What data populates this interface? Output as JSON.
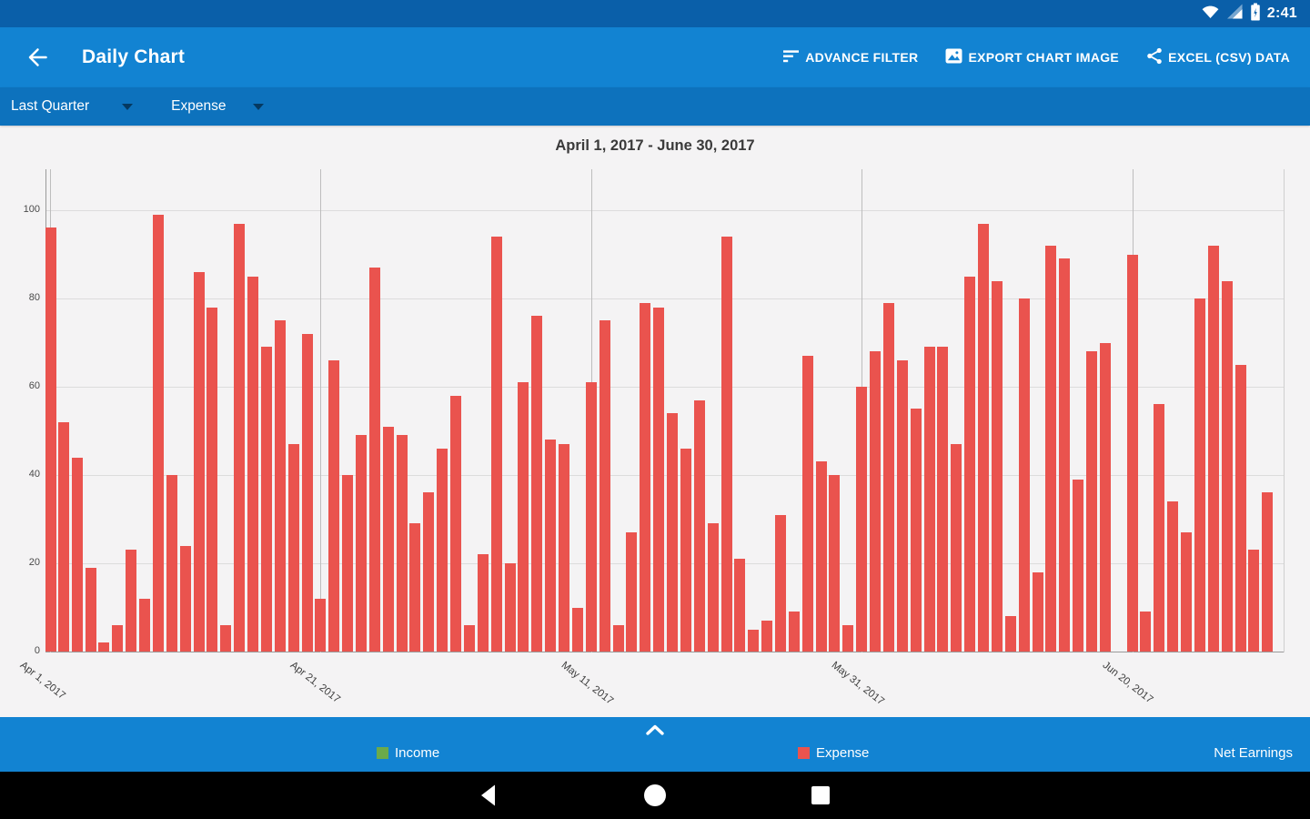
{
  "status_bar": {
    "time": "2:41",
    "icons": [
      "wifi-icon",
      "cellular-signal-icon",
      "battery-charging-icon"
    ]
  },
  "app_bar": {
    "title": "Daily Chart",
    "back_icon": "back-arrow-icon",
    "actions": [
      {
        "label": "ADVANCE FILTER",
        "icon": "filter-list-icon"
      },
      {
        "label": "EXPORT CHART IMAGE",
        "icon": "photo-icon"
      },
      {
        "label": "EXCEL (CSV) DATA",
        "icon": "share-icon"
      }
    ]
  },
  "filter_bar": {
    "period_selected": "Last Quarter",
    "type_selected": "Expense",
    "dropdown_icon": "chevron-down-icon"
  },
  "chart_data": {
    "type": "bar",
    "title": "April 1, 2017 - June 30, 2017",
    "series_name": "Expense",
    "bar_color": "#EA534E",
    "ylim": [
      0,
      100
    ],
    "y_ticks": [
      0,
      20,
      40,
      60,
      80,
      100
    ],
    "grid": true,
    "x_tick_labels": [
      "Apr 1, 2017",
      "Apr 21, 2017",
      "May 11, 2017",
      "May 31, 2017",
      "Jun 20, 2017"
    ],
    "x_tick_day_indices": [
      0,
      20,
      40,
      60,
      80
    ],
    "values": [
      96,
      52,
      44,
      19,
      2,
      6,
      23,
      12,
      99,
      40,
      24,
      86,
      78,
      6,
      97,
      85,
      69,
      75,
      47,
      72,
      12,
      66,
      40,
      49,
      87,
      51,
      49,
      29,
      36,
      46,
      58,
      6,
      22,
      94,
      20,
      61,
      76,
      48,
      47,
      10,
      61,
      75,
      6,
      27,
      79,
      78,
      54,
      46,
      57,
      29,
      94,
      21,
      5,
      7,
      31,
      9,
      67,
      43,
      40,
      6,
      60,
      68,
      79,
      66,
      55,
      69,
      69,
      47,
      85,
      97,
      84,
      8,
      80,
      18,
      92,
      89,
      39,
      68,
      70,
      0,
      90,
      9,
      56,
      34,
      27,
      80,
      92,
      84,
      65,
      23,
      36
    ]
  },
  "legend": {
    "expand_icon": "chevron-up-icon",
    "items": [
      {
        "label": "Income",
        "color": "#6BAA4B"
      },
      {
        "label": "Expense",
        "color": "#EA534E"
      }
    ],
    "net_label": "Net Earnings"
  },
  "nav_bar": {
    "icons": [
      "nav-back-icon",
      "nav-home-icon",
      "nav-recents-icon"
    ]
  },
  "colors": {
    "status_bar_blue": "#0A5FA9",
    "app_bar_blue": "#1283D2",
    "filter_bar_blue": "#0D72BD",
    "bottom_bar_blue": "#1283D2",
    "chart_bg": "#F4F3F4",
    "expense_red": "#EA534E",
    "income_green": "#6BAA4B"
  }
}
